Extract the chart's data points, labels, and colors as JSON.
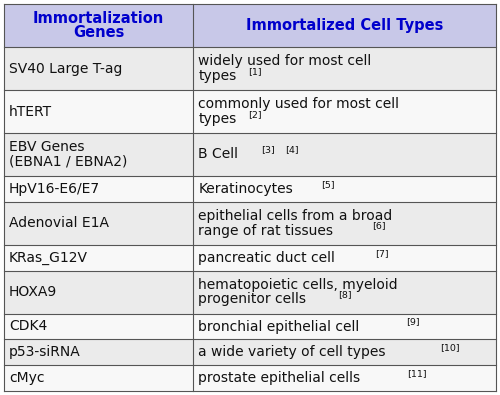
{
  "header": [
    "Immortalization\nGenes",
    "Immortalized Cell Types"
  ],
  "rows": [
    [
      "SV40 Large T-ag",
      "widely used for most cell\ntypes",
      "1"
    ],
    [
      "hTERT",
      "commonly used for most cell\ntypes",
      "2"
    ],
    [
      "EBV Genes\n(EBNA1 / EBNA2)",
      "B Cell  [3] [4]",
      ""
    ],
    [
      "HpV16-E6/E7",
      "Keratinocytes",
      "5"
    ],
    [
      "Adenovial E1A",
      "epithelial cells from a broad\nrange of rat tissues",
      "6"
    ],
    [
      "KRas_G12V",
      "pancreatic duct cell",
      "7"
    ],
    [
      "HOXA9",
      "hematopoietic cells, myeloid\nprogenitor cells",
      "8"
    ],
    [
      "CDK4",
      "bronchial epithelial cell",
      "9"
    ],
    [
      "p53-siRNA",
      "a wide variety of cell types",
      "10"
    ],
    [
      "cMyc",
      "prostate epithelial cells",
      "11"
    ]
  ],
  "col_split": 0.385,
  "header_bg": "#c8c8e8",
  "row_bg_odd": "#ebebeb",
  "row_bg_even": "#f8f8f8",
  "border_color": "#555555",
  "header_text_color": "#0000cc",
  "cell_text_color": "#111111",
  "fig_bg": "#ffffff",
  "header_fontsize": 10.5,
  "cell_fontsize": 10.0,
  "fig_width": 5.0,
  "fig_height": 3.95,
  "dpi": 100
}
